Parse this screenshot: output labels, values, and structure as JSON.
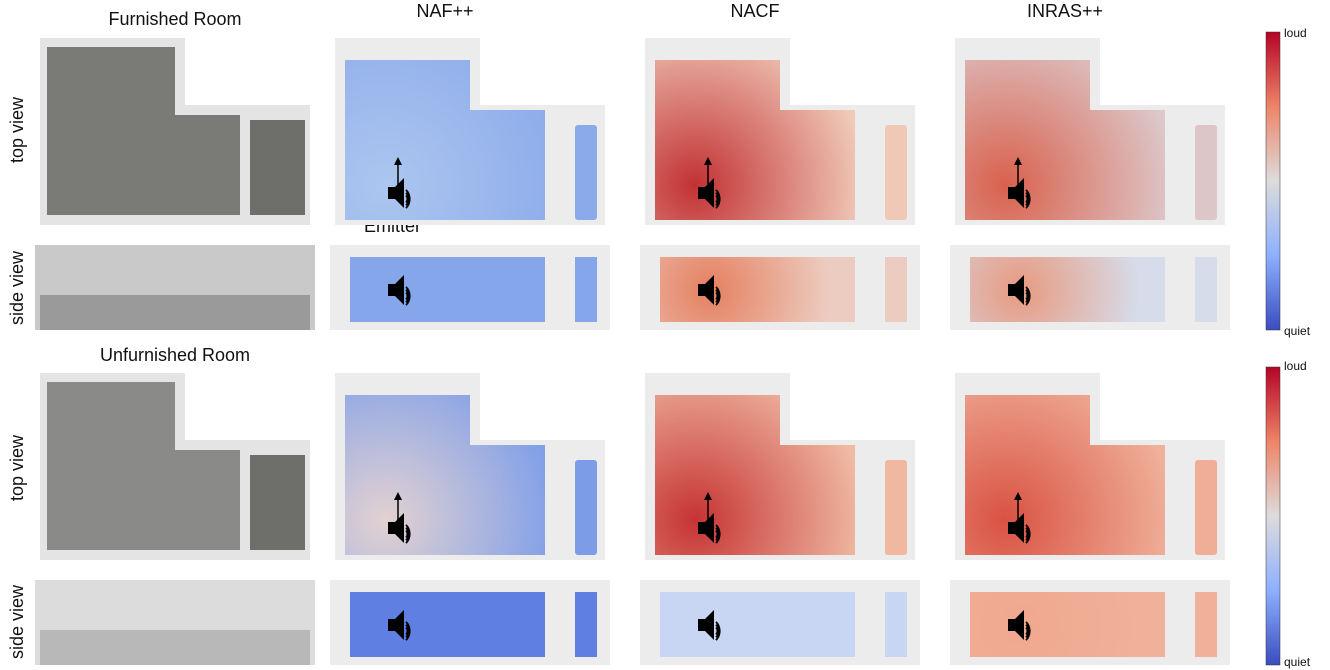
{
  "columns": [
    "NAF++",
    "NACF",
    "INRAS++"
  ],
  "rooms": [
    {
      "title": "Furnished Room",
      "rows": [
        "top view",
        "side view"
      ]
    },
    {
      "title": "Unfurnished Room",
      "rows": [
        "top view",
        "side view"
      ]
    }
  ],
  "emitter_label": "Emitter",
  "colorbar": {
    "high": "loud",
    "low": "quiet"
  }
}
